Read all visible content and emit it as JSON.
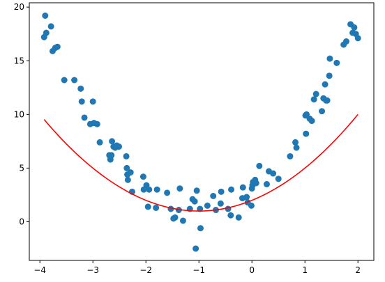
{
  "chart_data": {
    "type": "scatter",
    "title": "",
    "xlabel": "",
    "ylabel": "",
    "xlim": [
      -4.2,
      2.3
    ],
    "ylim": [
      -3.6,
      20.4
    ],
    "grid": false,
    "legend": false,
    "x_ticks": [
      -4,
      -3,
      -2,
      -1,
      0,
      1,
      2
    ],
    "y_ticks": [
      0,
      5,
      10,
      15,
      20
    ],
    "series": [
      {
        "kind": "scatter",
        "color": "#1f77b4",
        "points": [
          {
            "x": -3.92,
            "y": 17.2
          },
          {
            "x": -3.9,
            "y": 19.2
          },
          {
            "x": -3.88,
            "y": 17.6
          },
          {
            "x": -3.79,
            "y": 18.2
          },
          {
            "x": -3.76,
            "y": 15.9
          },
          {
            "x": -3.71,
            "y": 16.2
          },
          {
            "x": -3.67,
            "y": 16.3
          },
          {
            "x": -3.54,
            "y": 13.2
          },
          {
            "x": -3.35,
            "y": 13.2
          },
          {
            "x": -3.23,
            "y": 12.4
          },
          {
            "x": -3.21,
            "y": 11.2
          },
          {
            "x": -3.16,
            "y": 9.7
          },
          {
            "x": -3.05,
            "y": 9.1
          },
          {
            "x": -3.0,
            "y": 11.2
          },
          {
            "x": -2.98,
            "y": 9.2
          },
          {
            "x": -2.92,
            "y": 9.1
          },
          {
            "x": -2.87,
            "y": 7.4
          },
          {
            "x": -2.69,
            "y": 6.2
          },
          {
            "x": -2.67,
            "y": 5.8
          },
          {
            "x": -2.65,
            "y": 6.2
          },
          {
            "x": -2.64,
            "y": 7.5
          },
          {
            "x": -2.61,
            "y": 7.0
          },
          {
            "x": -2.58,
            "y": 6.9
          },
          {
            "x": -2.55,
            "y": 7.1
          },
          {
            "x": -2.51,
            "y": 7.0
          },
          {
            "x": -2.37,
            "y": 6.1
          },
          {
            "x": -2.36,
            "y": 5.0
          },
          {
            "x": -2.35,
            "y": 4.4
          },
          {
            "x": -2.34,
            "y": 3.9
          },
          {
            "x": -2.29,
            "y": 4.6
          },
          {
            "x": -2.26,
            "y": 2.8
          },
          {
            "x": -2.05,
            "y": 4.2
          },
          {
            "x": -2.04,
            "y": 3.0
          },
          {
            "x": -1.99,
            "y": 3.4
          },
          {
            "x": -1.96,
            "y": 1.4
          },
          {
            "x": -1.94,
            "y": 3.0
          },
          {
            "x": -1.81,
            "y": 1.3
          },
          {
            "x": -1.79,
            "y": 3.0
          },
          {
            "x": -1.6,
            "y": 2.7
          },
          {
            "x": -1.53,
            "y": 1.2
          },
          {
            "x": -1.48,
            "y": 0.3
          },
          {
            "x": -1.45,
            "y": 0.4
          },
          {
            "x": -1.38,
            "y": 1.1
          },
          {
            "x": -1.36,
            "y": 3.1
          },
          {
            "x": -1.3,
            "y": 0.1
          },
          {
            "x": -1.17,
            "y": 1.2
          },
          {
            "x": -1.12,
            "y": 2.1
          },
          {
            "x": -1.08,
            "y": 1.9
          },
          {
            "x": -1.06,
            "y": -2.5
          },
          {
            "x": -1.04,
            "y": 2.9
          },
          {
            "x": -0.98,
            "y": 1.2
          },
          {
            "x": -0.97,
            "y": -0.6
          },
          {
            "x": -0.84,
            "y": 1.5
          },
          {
            "x": -0.73,
            "y": 2.4
          },
          {
            "x": -0.68,
            "y": 1.1
          },
          {
            "x": -0.59,
            "y": 1.7
          },
          {
            "x": -0.58,
            "y": 2.8
          },
          {
            "x": -0.45,
            "y": 1.2
          },
          {
            "x": -0.4,
            "y": 0.6
          },
          {
            "x": -0.39,
            "y": 3.0
          },
          {
            "x": -0.25,
            "y": 0.4
          },
          {
            "x": -0.18,
            "y": 2.2
          },
          {
            "x": -0.17,
            "y": 3.2
          },
          {
            "x": -0.1,
            "y": 2.3
          },
          {
            "x": -0.08,
            "y": 1.8
          },
          {
            "x": -0.01,
            "y": 1.5
          },
          {
            "x": 0.0,
            "y": 3.1
          },
          {
            "x": 0.01,
            "y": 3.4
          },
          {
            "x": 0.02,
            "y": 3.7
          },
          {
            "x": 0.06,
            "y": 3.9
          },
          {
            "x": 0.08,
            "y": 3.6
          },
          {
            "x": 0.14,
            "y": 5.2
          },
          {
            "x": 0.28,
            "y": 3.5
          },
          {
            "x": 0.32,
            "y": 4.7
          },
          {
            "x": 0.4,
            "y": 4.5
          },
          {
            "x": 0.5,
            "y": 4.0
          },
          {
            "x": 0.72,
            "y": 6.1
          },
          {
            "x": 0.82,
            "y": 7.4
          },
          {
            "x": 0.84,
            "y": 6.9
          },
          {
            "x": 1.01,
            "y": 9.9
          },
          {
            "x": 1.02,
            "y": 8.2
          },
          {
            "x": 1.03,
            "y": 10.0
          },
          {
            "x": 1.09,
            "y": 9.6
          },
          {
            "x": 1.13,
            "y": 9.4
          },
          {
            "x": 1.17,
            "y": 11.4
          },
          {
            "x": 1.21,
            "y": 11.9
          },
          {
            "x": 1.32,
            "y": 10.3
          },
          {
            "x": 1.35,
            "y": 11.5
          },
          {
            "x": 1.38,
            "y": 12.8
          },
          {
            "x": 1.4,
            "y": 11.3
          },
          {
            "x": 1.42,
            "y": 11.3
          },
          {
            "x": 1.46,
            "y": 13.6
          },
          {
            "x": 1.47,
            "y": 15.2
          },
          {
            "x": 1.6,
            "y": 14.8
          },
          {
            "x": 1.73,
            "y": 16.5
          },
          {
            "x": 1.78,
            "y": 16.8
          },
          {
            "x": 1.86,
            "y": 18.4
          },
          {
            "x": 1.9,
            "y": 17.6
          },
          {
            "x": 1.93,
            "y": 18.1
          },
          {
            "x": 1.96,
            "y": 17.5
          },
          {
            "x": 2.0,
            "y": 17.1
          }
        ]
      },
      {
        "kind": "line",
        "color": "#ff0000",
        "fit": "quadratic",
        "coefficients": {
          "a": 1.0,
          "b": 2.0,
          "c": 2.0
        },
        "x_range": [
          -3.92,
          2.0
        ]
      }
    ]
  }
}
